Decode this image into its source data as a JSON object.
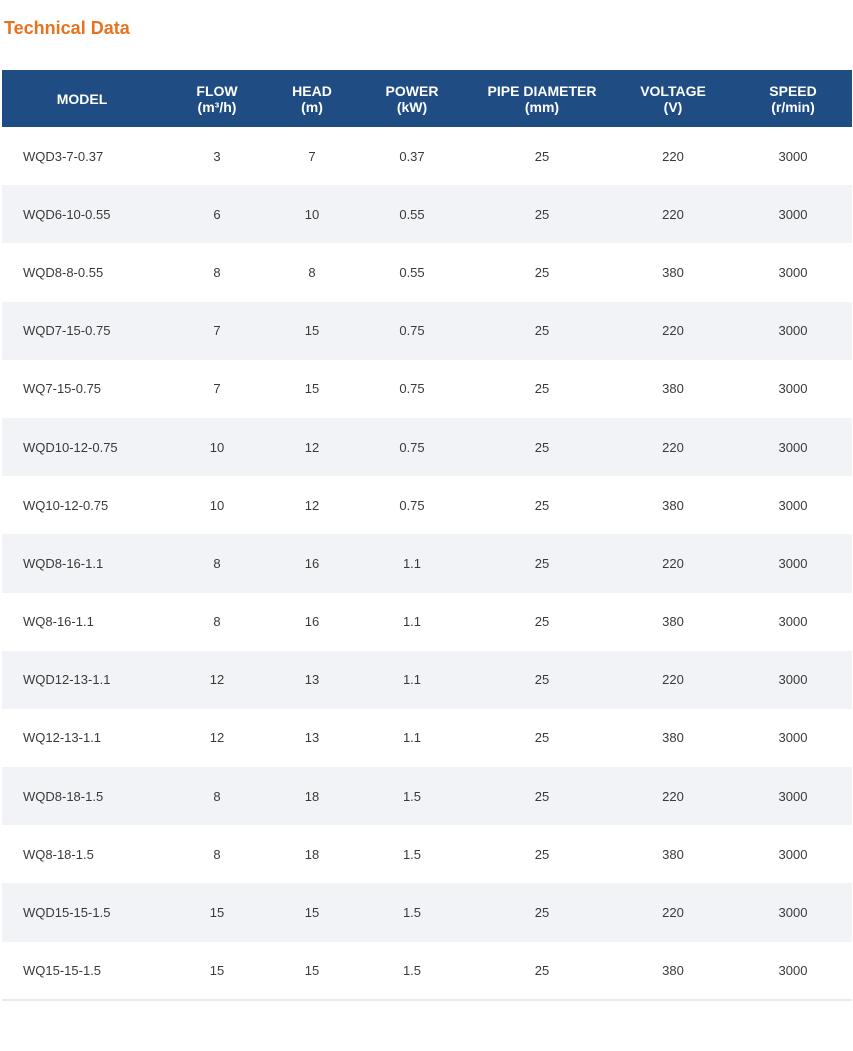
{
  "title": "Technical Data",
  "columns": [
    {
      "label": "MODEL",
      "unit": ""
    },
    {
      "label": "FLOW",
      "unit": "(m³/h)"
    },
    {
      "label": "HEAD",
      "unit": "(m)"
    },
    {
      "label": "POWER",
      "unit": "(kW)"
    },
    {
      "label": "PIPE DIAMETER",
      "unit": "(mm)"
    },
    {
      "label": "VOLTAGE",
      "unit": "(V)"
    },
    {
      "label": "SPEED",
      "unit": "(r/min)"
    }
  ],
  "rows": [
    [
      "WQD3-7-0.37",
      "3",
      "7",
      "0.37",
      "25",
      "220",
      "3000"
    ],
    [
      "WQD6-10-0.55",
      "6",
      "10",
      "0.55",
      "25",
      "220",
      "3000"
    ],
    [
      "WQD8-8-0.55",
      "8",
      "8",
      "0.55",
      "25",
      "380",
      "3000"
    ],
    [
      "WQD7-15-0.75",
      "7",
      "15",
      "0.75",
      "25",
      "220",
      "3000"
    ],
    [
      "WQ7-15-0.75",
      "7",
      "15",
      "0.75",
      "25",
      "380",
      "3000"
    ],
    [
      "WQD10-12-0.75",
      "10",
      "12",
      "0.75",
      "25",
      "220",
      "3000"
    ],
    [
      "WQ10-12-0.75",
      "10",
      "12",
      "0.75",
      "25",
      "380",
      "3000"
    ],
    [
      "WQD8-16-1.1",
      "8",
      "16",
      "1.1",
      "25",
      "220",
      "3000"
    ],
    [
      "WQ8-16-1.1",
      "8",
      "16",
      "1.1",
      "25",
      "380",
      "3000"
    ],
    [
      "WQD12-13-1.1",
      "12",
      "13",
      "1.1",
      "25",
      "220",
      "3000"
    ],
    [
      "WQ12-13-1.1",
      "12",
      "13",
      "1.1",
      "25",
      "380",
      "3000"
    ],
    [
      "WQD8-18-1.5",
      "8",
      "18",
      "1.5",
      "25",
      "220",
      "3000"
    ],
    [
      "WQ8-18-1.5",
      "8",
      "18",
      "1.5",
      "25",
      "380",
      "3000"
    ],
    [
      "WQD15-15-1.5",
      "15",
      "15",
      "1.5",
      "25",
      "220",
      "3000"
    ],
    [
      "WQ15-15-1.5",
      "15",
      "15",
      "1.5",
      "25",
      "380",
      "3000"
    ]
  ],
  "colors": {
    "title": "#e8731e",
    "header_bg": "#1e4c83",
    "stripe": "#f1f3f6"
  }
}
